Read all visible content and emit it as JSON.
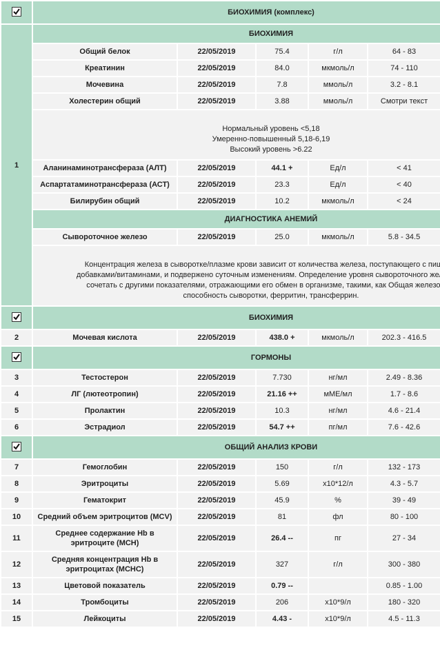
{
  "sections": [
    {
      "title": "БИОХИМИЯ (комплекс)",
      "number": "1",
      "groups": [
        {
          "title": "БИОХИМИЯ",
          "items": [
            {
              "name": "Общий белок",
              "date": "22/05/2019",
              "value": "75.4",
              "unit": "г/л",
              "ref": "64 - 83"
            },
            {
              "name": "Креатинин",
              "date": "22/05/2019",
              "value": "84.0",
              "unit": "мкмоль/л",
              "ref": "74 - 110"
            },
            {
              "name": "Мочевина",
              "date": "22/05/2019",
              "value": "7.8",
              "unit": "ммоль/л",
              "ref": "3.2 - 8.1"
            },
            {
              "name": "Холестерин общий",
              "date": "22/05/2019",
              "value": "3.88",
              "unit": "ммоль/л",
              "ref": "Смотри текст"
            },
            {
              "note": [
                "Нормальный уровень <5,18",
                "Умеренно-повышенный 5,18-6,19",
                "Высокий уровень >6.22"
              ]
            },
            {
              "name": "Аланинаминотрансфераза (АЛТ)",
              "date": "22/05/2019",
              "value": "44.1 +",
              "unit": "Ед/л",
              "ref": "< 41"
            },
            {
              "name": "Аспартатаминотрансфераза (АСТ)",
              "date": "22/05/2019",
              "value": "23.3",
              "unit": "Ед/л",
              "ref": "< 40"
            },
            {
              "name": "Билирубин общий",
              "date": "22/05/2019",
              "value": "10.2",
              "unit": "мкмоль/л",
              "ref": "< 24"
            }
          ]
        },
        {
          "title": "ДИАГНОСТИКА АНЕМИЙ",
          "items": [
            {
              "name": "Сывороточное железо",
              "date": "22/05/2019",
              "value": "25.0",
              "unit": "мкмоль/л",
              "ref": "5.8 - 34.5"
            },
            {
              "note": [
                "Концентрация железа в сыворотке/плазме крови зависит от количества железа, поступающего с пищей/п",
                "добавками/витаминами, и подвержено суточным изменениям. Определение уровня сывороточного железа ре",
                "сочетать с другими показателями, отражающими его обмен в организме, такими, как Общая железосвяз",
                "способность сыворотки, ферритин, трансферрин."
              ]
            }
          ]
        }
      ]
    },
    {
      "title": "БИОХИМИЯ",
      "items": [
        {
          "number": "2",
          "name": "Мочевая кислота",
          "date": "22/05/2019",
          "value": "438.0 +",
          "unit": "мкмоль/л",
          "ref": "202.3 - 416.5"
        }
      ]
    },
    {
      "title": "ГОРМОНЫ",
      "items": [
        {
          "number": "3",
          "name": "Тестостерон",
          "date": "22/05/2019",
          "value": "7.730",
          "unit": "нг/мл",
          "ref": "2.49 - 8.36"
        },
        {
          "number": "4",
          "name": "ЛГ (лютеотропин)",
          "date": "22/05/2019",
          "value": "21.16 ++",
          "unit": "мМЕ/мл",
          "ref": "1.7 - 8.6"
        },
        {
          "number": "5",
          "name": "Пролактин",
          "date": "22/05/2019",
          "value": "10.3",
          "unit": "нг/мл",
          "ref": "4.6 - 21.4"
        },
        {
          "number": "6",
          "name": "Эстрадиол",
          "date": "22/05/2019",
          "value": "54.7 ++",
          "unit": "пг/мл",
          "ref": "7.6 - 42.6"
        }
      ]
    },
    {
      "title": "ОБЩИЙ АНАЛИЗ КРОВИ",
      "items": [
        {
          "number": "7",
          "name": "Гемоглобин",
          "date": "22/05/2019",
          "value": "150",
          "unit": "г/л",
          "ref": "132 - 173"
        },
        {
          "number": "8",
          "name": "Эритроциты",
          "date": "22/05/2019",
          "value": "5.69",
          "unit": "x10*12/л",
          "ref": "4.3 - 5.7"
        },
        {
          "number": "9",
          "name": "Гематокрит",
          "date": "22/05/2019",
          "value": "45.9",
          "unit": "%",
          "ref": "39 - 49"
        },
        {
          "number": "10",
          "name": "Средний объем эритроцитов (MCV)",
          "date": "22/05/2019",
          "value": "81",
          "unit": "фл",
          "ref": "80 - 100"
        },
        {
          "number": "11",
          "name": "Среднее содержание Hb в эритроците (MCH)",
          "date": "22/05/2019",
          "value": "26.4 --",
          "unit": "пг",
          "ref": "27 - 34"
        },
        {
          "number": "12",
          "name": "Средняя концентрация Hb в эритроцитах (MCHC)",
          "date": "22/05/2019",
          "value": "327",
          "unit": "г/л",
          "ref": "300 - 380"
        },
        {
          "number": "13",
          "name": "Цветовой показатель",
          "date": "22/05/2019",
          "value": "0.79 --",
          "unit": "",
          "ref": "0.85 - 1.00"
        },
        {
          "number": "14",
          "name": "Тромбоциты",
          "date": "22/05/2019",
          "value": "206",
          "unit": "x10*9/л",
          "ref": "180 - 320"
        },
        {
          "number": "15",
          "name": "Лейкоциты",
          "date": "22/05/2019",
          "value": "4.43 -",
          "unit": "x10*9/л",
          "ref": "4.5 - 11.3"
        }
      ]
    }
  ]
}
